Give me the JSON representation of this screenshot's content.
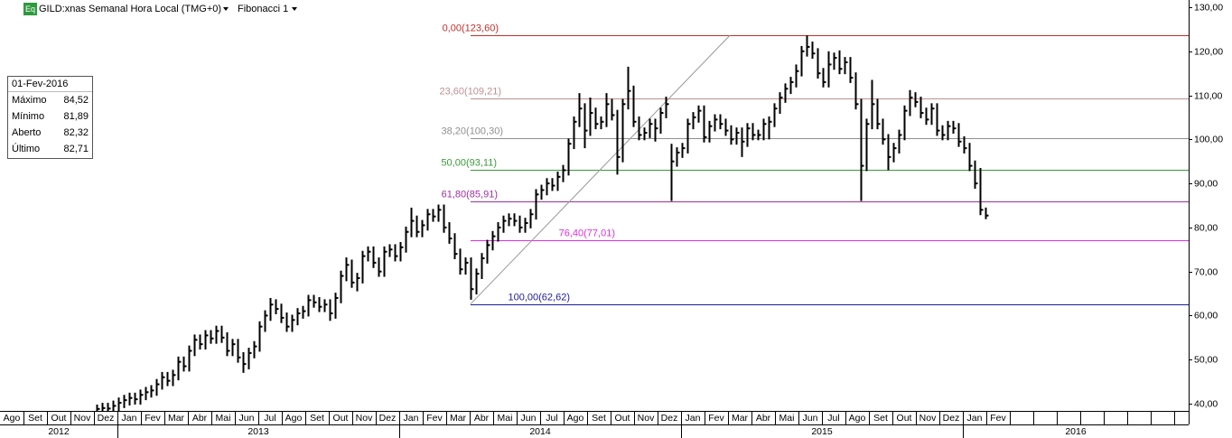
{
  "chart_data": {
    "type": "ohlc",
    "icon": "Eq",
    "title": "GILD:xnas Semanal Hora Local (TMG+0)",
    "indicator": "Fibonacci 1",
    "info_box": {
      "date": "01-Fev-2016",
      "rows": [
        [
          "Máximo",
          "84,52"
        ],
        [
          "Mínimo",
          "81,89"
        ],
        [
          "Aberto",
          "82,32"
        ],
        [
          "Último",
          "82,71"
        ]
      ]
    },
    "ylim": [
      40,
      130
    ],
    "yticks": [
      {
        "value": 130,
        "label": "130,00"
      },
      {
        "value": 120,
        "label": "120,00"
      },
      {
        "value": 110,
        "label": "110,00"
      },
      {
        "value": 100,
        "label": "100,00"
      },
      {
        "value": 90,
        "label": "90,00"
      },
      {
        "value": 80,
        "label": "80,00"
      },
      {
        "value": 70,
        "label": "70,00"
      },
      {
        "value": 60,
        "label": "60,00"
      },
      {
        "value": 50,
        "label": "50,00"
      },
      {
        "value": 40,
        "label": "40,00"
      }
    ],
    "months": [
      "Ago",
      "Set",
      "Out",
      "Nov",
      "Dez",
      "Jan",
      "Fev",
      "Mar",
      "Abr",
      "Mai",
      "Jun",
      "Jul",
      "Ago",
      "Set",
      "Out",
      "Nov",
      "Dez",
      "Jan",
      "Fev",
      "Mar",
      "Abr",
      "Mai",
      "Jun",
      "Jul",
      "Ago",
      "Set",
      "Out",
      "Nov",
      "Dez",
      "Jan",
      "Fev",
      "Mar",
      "Abr",
      "Mai",
      "Jun",
      "Jul",
      "Ago",
      "Set",
      "Out",
      "Nov",
      "Dez",
      "Jan",
      "Fev"
    ],
    "years": [
      "2012",
      "2013",
      "2014",
      "2015",
      "2016"
    ],
    "color": "#000000",
    "fibonacci": [
      {
        "label": "0,00(123,60)",
        "value": 123.6,
        "color": "#c0302a"
      },
      {
        "label": "23,60(109,21)",
        "value": 109.21,
        "color": "#c09090"
      },
      {
        "label": "38,20(100,30)",
        "value": 100.3,
        "color": "#909090"
      },
      {
        "label": "50,00(93,11)",
        "value": 93.11,
        "color": "#3a9a3a"
      },
      {
        "label": "61,80(85,91)",
        "value": 85.91,
        "color": "#a030a0"
      },
      {
        "label": "76,40(77,01)",
        "value": 77.01,
        "color": "#e030e0"
      },
      {
        "label": "100,00(62,62)",
        "value": 62.62,
        "color": "#1c1c9c"
      }
    ],
    "high": [
      39.8,
      40.2,
      40.2,
      40.7,
      41.4,
      42.0,
      42.5,
      42.5,
      43.2,
      43.8,
      44.2,
      45.6,
      47.2,
      47.2,
      47.7,
      50.7,
      50.7,
      53.2,
      55.7,
      55.7,
      56.7,
      56.7,
      57.7,
      57.7,
      56.2,
      54.7,
      54.7,
      51.7,
      52.7,
      54.2,
      58.7,
      61.2,
      64.0,
      63.7,
      62.7,
      60.7,
      60.2,
      61.7,
      62.2,
      64.7,
      64.7,
      64.2,
      63.7,
      63.7,
      65.2,
      70.2,
      73.2,
      72.7,
      69.7,
      74.7,
      75.7,
      75.7,
      73.2,
      75.7,
      76.2,
      76.2,
      76.7,
      80.2,
      84.5,
      82.7,
      81.7,
      84.2,
      84.2,
      85.2,
      85.2,
      81.2,
      78.7,
      75.2,
      73.2,
      73.2,
      70.7,
      74.2,
      77.2,
      79.2,
      81.2,
      82.7,
      83.2,
      83.2,
      82.7,
      82.2,
      84.2,
      88.7,
      89.7,
      91.2,
      91.2,
      92.7,
      94.2,
      100.2,
      105.2,
      110.5,
      108.2,
      109.5,
      107.2,
      105.2,
      110.5,
      109.2,
      106.7,
      109.2,
      116.5,
      112.2,
      105.2,
      102.7,
      104.7,
      104.7,
      107.2,
      109.7,
      99.0,
      98.2,
      99.2,
      104.7,
      106.2,
      107.7,
      107.7,
      104.2,
      105.7,
      105.7,
      104.7,
      103.2,
      102.7,
      102.7,
      103.7,
      103.7,
      102.2,
      104.7,
      105.2,
      108.2,
      110.7,
      112.7,
      114.2,
      117.0,
      121.2,
      123.6,
      122.2,
      120.7,
      116.2,
      120.0,
      119.7,
      120.2,
      118.7,
      118.7,
      115.2,
      109.2,
      104.7,
      113.5,
      109.2,
      104.7,
      101.2,
      99.2,
      102.2,
      107.7,
      111.2,
      110.7,
      109.7,
      107.2,
      108.2,
      108.2,
      103.2,
      104.2,
      104.2,
      103.7,
      100.7,
      99.2,
      95.2,
      93.5,
      84.52
    ],
    "low": [
      38.0,
      37.6,
      37.7,
      37.7,
      38.3,
      39.0,
      39.6,
      39.8,
      39.8,
      40.8,
      41.4,
      41.8,
      43.2,
      44.0,
      44.0,
      45.3,
      47.3,
      47.3,
      50.8,
      52.3,
      52.3,
      53.6,
      53.6,
      53.8,
      50.8,
      50.8,
      49.3,
      47.0,
      47.8,
      50.3,
      51.8,
      56.3,
      58.8,
      60.3,
      58.3,
      56.3,
      56.3,
      57.8,
      59.3,
      59.8,
      61.8,
      60.8,
      60.8,
      58.8,
      59.3,
      62.8,
      67.8,
      66.3,
      65.5,
      67.3,
      72.3,
      70.8,
      68.8,
      68.8,
      73.3,
      72.3,
      72.3,
      74.3,
      77.8,
      77.8,
      77.8,
      79.3,
      81.3,
      81.3,
      78.8,
      76.3,
      72.8,
      69.3,
      69.3,
      63.6,
      64.8,
      68.3,
      71.8,
      74.8,
      76.8,
      78.8,
      80.3,
      80.3,
      78.8,
      78.8,
      79.8,
      81.8,
      86.3,
      87.3,
      88.3,
      88.3,
      90.3,
      91.8,
      97.8,
      102.8,
      98.0,
      100.8,
      102.3,
      102.3,
      102.8,
      104.3,
      92.0,
      94.8,
      106.8,
      102.8,
      99.8,
      99.8,
      100.3,
      99.5,
      101.3,
      104.8,
      86.0,
      93.8,
      95.8,
      96.8,
      102.3,
      103.8,
      99.3,
      99.3,
      101.8,
      102.3,
      100.8,
      98.8,
      98.8,
      96.0,
      98.3,
      99.8,
      99.8,
      99.8,
      100.0,
      102.8,
      105.8,
      108.3,
      110.3,
      111.8,
      114.3,
      118.8,
      118.3,
      113.8,
      111.8,
      111.8,
      115.8,
      114.8,
      114.8,
      112.8,
      106.8,
      86.0,
      92.8,
      102.3,
      102.3,
      98.8,
      93.0,
      94.8,
      96.8,
      99.8,
      105.3,
      107.3,
      104.8,
      103.3,
      103.3,
      100.8,
      99.8,
      99.8,
      101.3,
      98.3,
      96.8,
      92.8,
      88.8,
      82.8,
      81.89
    ],
    "close": [
      38.8,
      39.0,
      38.9,
      39.5,
      40.2,
      40.8,
      41.3,
      41.0,
      42.0,
      42.6,
      43.0,
      44.4,
      46.0,
      45.2,
      46.5,
      49.5,
      48.5,
      52.0,
      54.5,
      53.5,
      55.5,
      54.8,
      56.5,
      55.0,
      52.0,
      53.5,
      50.5,
      49.0,
      51.5,
      53.0,
      57.5,
      60.0,
      62.5,
      61.5,
      59.5,
      57.5,
      59.0,
      60.5,
      61.0,
      63.5,
      63.0,
      62.0,
      62.5,
      60.5,
      64.0,
      69.0,
      71.5,
      67.5,
      68.5,
      73.5,
      74.5,
      72.0,
      70.0,
      74.5,
      75.0,
      73.5,
      75.5,
      79.0,
      81.5,
      79.0,
      80.5,
      83.0,
      82.5,
      84.0,
      80.0,
      77.5,
      74.0,
      70.5,
      72.0,
      66.0,
      69.5,
      73.0,
      76.0,
      78.0,
      80.0,
      81.5,
      82.0,
      81.5,
      80.0,
      81.0,
      83.0,
      87.5,
      88.5,
      90.0,
      89.5,
      91.5,
      93.0,
      99.0,
      104.0,
      107.0,
      102.0,
      106.0,
      103.5,
      104.0,
      108.0,
      105.5,
      96.0,
      108.0,
      111.0,
      104.0,
      101.0,
      101.5,
      103.5,
      102.5,
      106.0,
      108.0,
      95.0,
      97.0,
      98.0,
      103.5,
      105.0,
      106.5,
      100.5,
      103.0,
      104.5,
      103.5,
      102.0,
      100.0,
      101.5,
      99.5,
      102.5,
      101.0,
      101.0,
      103.5,
      104.0,
      107.0,
      109.5,
      111.5,
      113.0,
      115.5,
      120.0,
      121.0,
      119.5,
      115.0,
      113.0,
      117.0,
      118.5,
      116.0,
      117.5,
      114.0,
      108.0,
      94.0,
      103.5,
      108.0,
      103.5,
      100.0,
      96.0,
      98.0,
      101.0,
      106.5,
      109.5,
      108.5,
      106.0,
      104.5,
      107.0,
      102.0,
      101.0,
      103.0,
      102.5,
      99.5,
      98.0,
      94.0,
      90.0,
      84.0,
      82.71
    ]
  }
}
